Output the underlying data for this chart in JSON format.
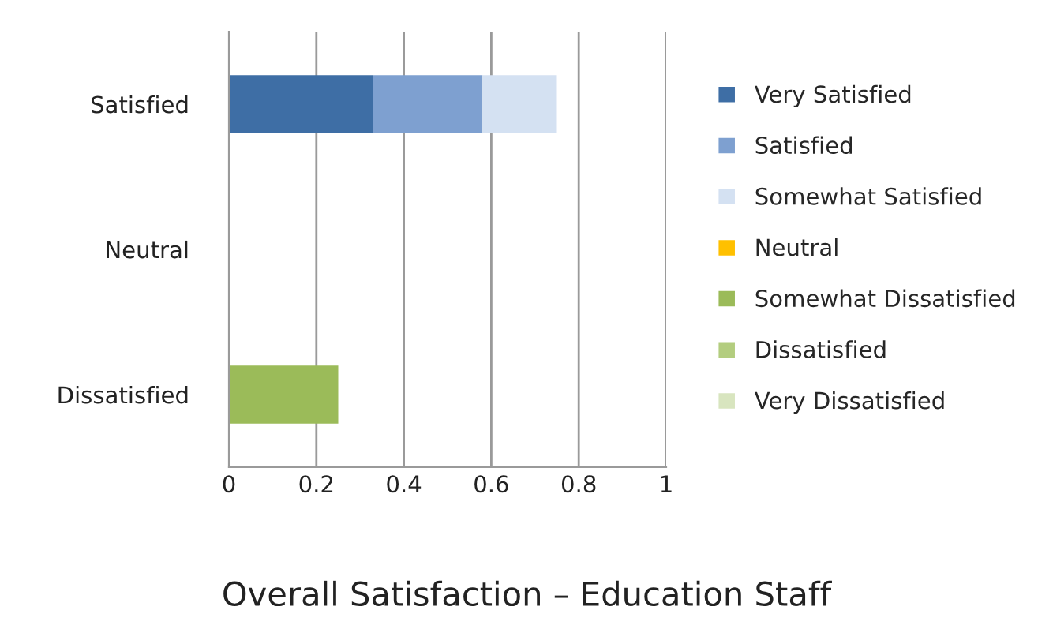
{
  "chart_data": {
    "type": "bar",
    "orientation": "horizontal",
    "stacked": true,
    "title": "Overall Satisfaction – Education Staff",
    "categories": [
      "Satisfied",
      "Neutral",
      "Dissatisfied"
    ],
    "series": [
      {
        "name": "Very Satisfied",
        "color": "#3e6ea5",
        "values": [
          0.33,
          0,
          0
        ]
      },
      {
        "name": "Satisfied",
        "color": "#7ea0d0",
        "values": [
          0.25,
          0,
          0
        ]
      },
      {
        "name": "Somewhat Satisfied",
        "color": "#d4e1f2",
        "values": [
          0.17,
          0,
          0
        ]
      },
      {
        "name": "Neutral",
        "color": "#ffc000",
        "values": [
          0,
          0,
          0
        ]
      },
      {
        "name": "Somewhat Dissatisfied",
        "color": "#9bbb59",
        "values": [
          0,
          0,
          0.25
        ]
      },
      {
        "name": "Dissatisfied",
        "color": "#b3cd7f",
        "values": [
          0,
          0,
          0
        ]
      },
      {
        "name": "Very Dissatisfied",
        "color": "#d8e5bf",
        "values": [
          0,
          0,
          0
        ]
      }
    ],
    "xlim": [
      0,
      1
    ],
    "xticks": [
      0,
      0.2,
      0.4,
      0.6,
      0.8,
      1
    ],
    "grid": "x",
    "legend": "right"
  }
}
